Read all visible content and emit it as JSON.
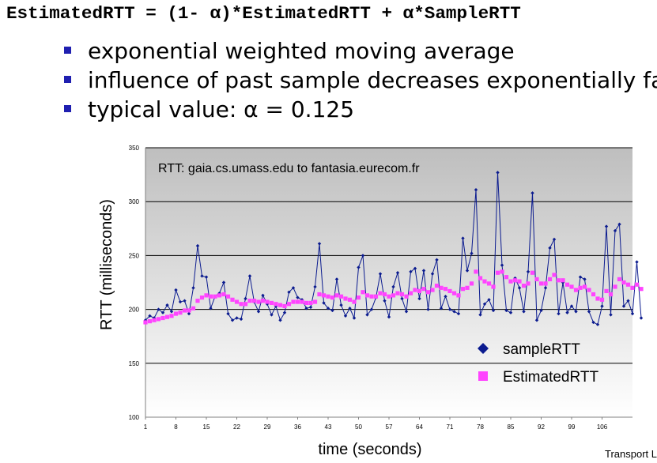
{
  "slide": {
    "formula": "EstimatedRTT = (1- α)*EstimatedRTT + α*SampleRTT",
    "bullets": [
      "exponential weighted moving average",
      "influence of past sample decreases exponentially fast",
      "typical value: α  = 0.125"
    ],
    "footer": "Transport L"
  },
  "colors": {
    "bullet": "#1f1fb0",
    "sample": "#0b1b8f",
    "estimated": "#ff44ff",
    "plot_top": "#bebebe",
    "plot_bottom": "#ffffff"
  },
  "chart_data": {
    "type": "line",
    "title": "RTT: gaia.cs.umass.edu to fantasia.eurecom.fr",
    "xlabel": "time (seconds)",
    "ylabel": "RTT (milliseconds)",
    "xlim": [
      1,
      113
    ],
    "ylim": [
      100,
      350
    ],
    "yticks": [
      100,
      150,
      200,
      250,
      300,
      350
    ],
    "xticks": [
      1,
      8,
      15,
      22,
      29,
      36,
      43,
      50,
      57,
      64,
      71,
      78,
      85,
      92,
      99,
      106
    ],
    "grid": true,
    "legend": "bottom-right",
    "series": [
      {
        "name": "sampleRTT",
        "marker": "diamond",
        "values": [
          190,
          194,
          192,
          200,
          197,
          204,
          198,
          218,
          207,
          208,
          196,
          220,
          259,
          231,
          230,
          201,
          212,
          215,
          225,
          196,
          190,
          192,
          191,
          210,
          231,
          207,
          198,
          213,
          205,
          195,
          203,
          190,
          197,
          216,
          220,
          211,
          209,
          201,
          202,
          221,
          261,
          206,
          201,
          199,
          228,
          204,
          194,
          201,
          192,
          239,
          250,
          195,
          200,
          211,
          233,
          208,
          193,
          221,
          234,
          210,
          198,
          235,
          238,
          210,
          236,
          200,
          233,
          246,
          201,
          212,
          200,
          198,
          196,
          266,
          236,
          252,
          311,
          195,
          205,
          209,
          199,
          327,
          241,
          199,
          197,
          229,
          220,
          198,
          235,
          308,
          190,
          199,
          220,
          257,
          265,
          196,
          225,
          197,
          203,
          198,
          230,
          228,
          198,
          188,
          186,
          203,
          277,
          195,
          273,
          279,
          203,
          208,
          196,
          244,
          192
        ]
      },
      {
        "name": "EstimatedRTT",
        "marker": "square",
        "values": [
          188,
          189,
          190,
          191,
          192,
          193,
          194,
          196,
          197,
          199,
          199,
          201,
          208,
          211,
          213,
          212,
          212,
          213,
          214,
          212,
          209,
          207,
          205,
          205,
          208,
          208,
          207,
          208,
          207,
          206,
          205,
          204,
          203,
          205,
          207,
          207,
          207,
          206,
          206,
          207,
          214,
          213,
          212,
          211,
          213,
          212,
          210,
          209,
          207,
          211,
          216,
          213,
          212,
          212,
          215,
          214,
          212,
          213,
          215,
          214,
          212,
          215,
          218,
          217,
          219,
          216,
          218,
          222,
          220,
          219,
          217,
          215,
          213,
          219,
          220,
          224,
          235,
          229,
          226,
          224,
          221,
          234,
          235,
          230,
          226,
          227,
          226,
          222,
          224,
          234,
          228,
          224,
          224,
          228,
          232,
          227,
          227,
          223,
          221,
          218,
          220,
          221,
          218,
          214,
          210,
          209,
          217,
          214,
          221,
          228,
          225,
          223,
          220,
          223,
          219
        ]
      }
    ]
  }
}
